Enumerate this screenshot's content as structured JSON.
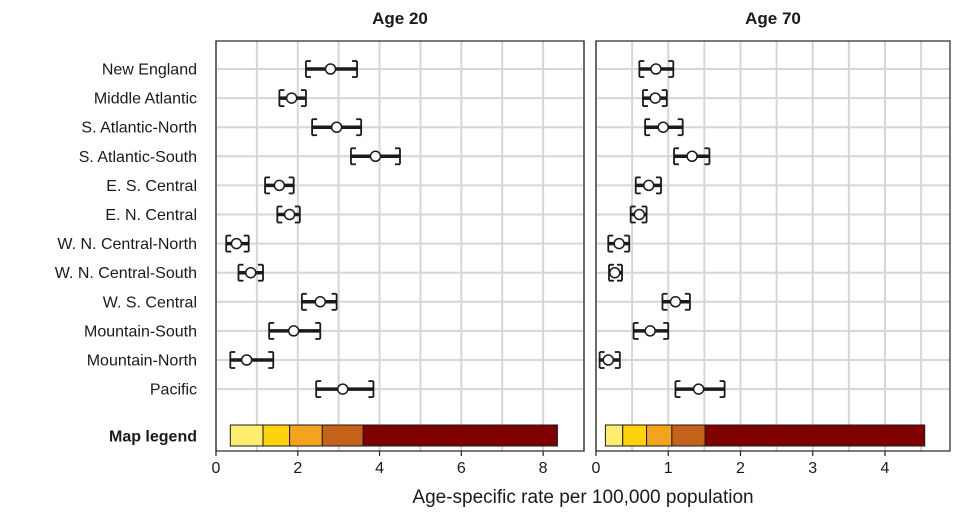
{
  "chart_data": {
    "type": "dot-interval",
    "xlabel": "Age-specific rate per 100,000 population",
    "legend_label": "Map legend",
    "regions": [
      "New England",
      "Middle Atlantic",
      "S. Atlantic-North",
      "S. Atlantic-South",
      "E. S. Central",
      "E. N. Central",
      "W. N. Central-North",
      "W. N. Central-South",
      "W. S. Central",
      "Mountain-South",
      "Mountain-North",
      "Pacific"
    ],
    "panels": [
      {
        "title": "Age 20",
        "xlim": [
          0,
          9.0
        ],
        "xticks": [
          0,
          2,
          4,
          6,
          8
        ],
        "points": [
          {
            "est": 2.8,
            "lo": 2.2,
            "hi": 3.45
          },
          {
            "est": 1.85,
            "lo": 1.55,
            "hi": 2.2
          },
          {
            "est": 2.95,
            "lo": 2.35,
            "hi": 3.55
          },
          {
            "est": 3.9,
            "lo": 3.3,
            "hi": 4.5
          },
          {
            "est": 1.55,
            "lo": 1.2,
            "hi": 1.9
          },
          {
            "est": 1.8,
            "lo": 1.5,
            "hi": 2.05
          },
          {
            "est": 0.5,
            "lo": 0.25,
            "hi": 0.8
          },
          {
            "est": 0.85,
            "lo": 0.55,
            "hi": 1.15
          },
          {
            "est": 2.55,
            "lo": 2.1,
            "hi": 2.95
          },
          {
            "est": 1.9,
            "lo": 1.3,
            "hi": 2.55
          },
          {
            "est": 0.75,
            "lo": 0.35,
            "hi": 1.4
          },
          {
            "est": 3.1,
            "lo": 2.45,
            "hi": 3.85
          }
        ],
        "legend_breaks": [
          0.35,
          1.15,
          1.8,
          2.6,
          3.6,
          8.35
        ]
      },
      {
        "title": "Age 70",
        "xlim": [
          0,
          4.9
        ],
        "xticks": [
          0,
          1,
          2,
          3,
          4
        ],
        "points": [
          {
            "est": 0.83,
            "lo": 0.6,
            "hi": 1.07
          },
          {
            "est": 0.82,
            "lo": 0.65,
            "hi": 0.98
          },
          {
            "est": 0.93,
            "lo": 0.68,
            "hi": 1.2
          },
          {
            "est": 1.33,
            "lo": 1.08,
            "hi": 1.57
          },
          {
            "est": 0.73,
            "lo": 0.55,
            "hi": 0.9
          },
          {
            "est": 0.6,
            "lo": 0.48,
            "hi": 0.7
          },
          {
            "est": 0.32,
            "lo": 0.17,
            "hi": 0.46
          },
          {
            "est": 0.26,
            "lo": 0.18,
            "hi": 0.36
          },
          {
            "est": 1.1,
            "lo": 0.92,
            "hi": 1.3
          },
          {
            "est": 0.75,
            "lo": 0.52,
            "hi": 1.0
          },
          {
            "est": 0.17,
            "lo": 0.05,
            "hi": 0.33
          },
          {
            "est": 1.42,
            "lo": 1.1,
            "hi": 1.78
          }
        ],
        "legend_breaks": [
          0.13,
          0.37,
          0.7,
          1.05,
          1.51,
          4.55
        ]
      }
    ],
    "legend_colors": [
      "#ffed6f",
      "#fdd30c",
      "#f4a31e",
      "#c4621a",
      "#7f0000"
    ],
    "grid": true
  }
}
